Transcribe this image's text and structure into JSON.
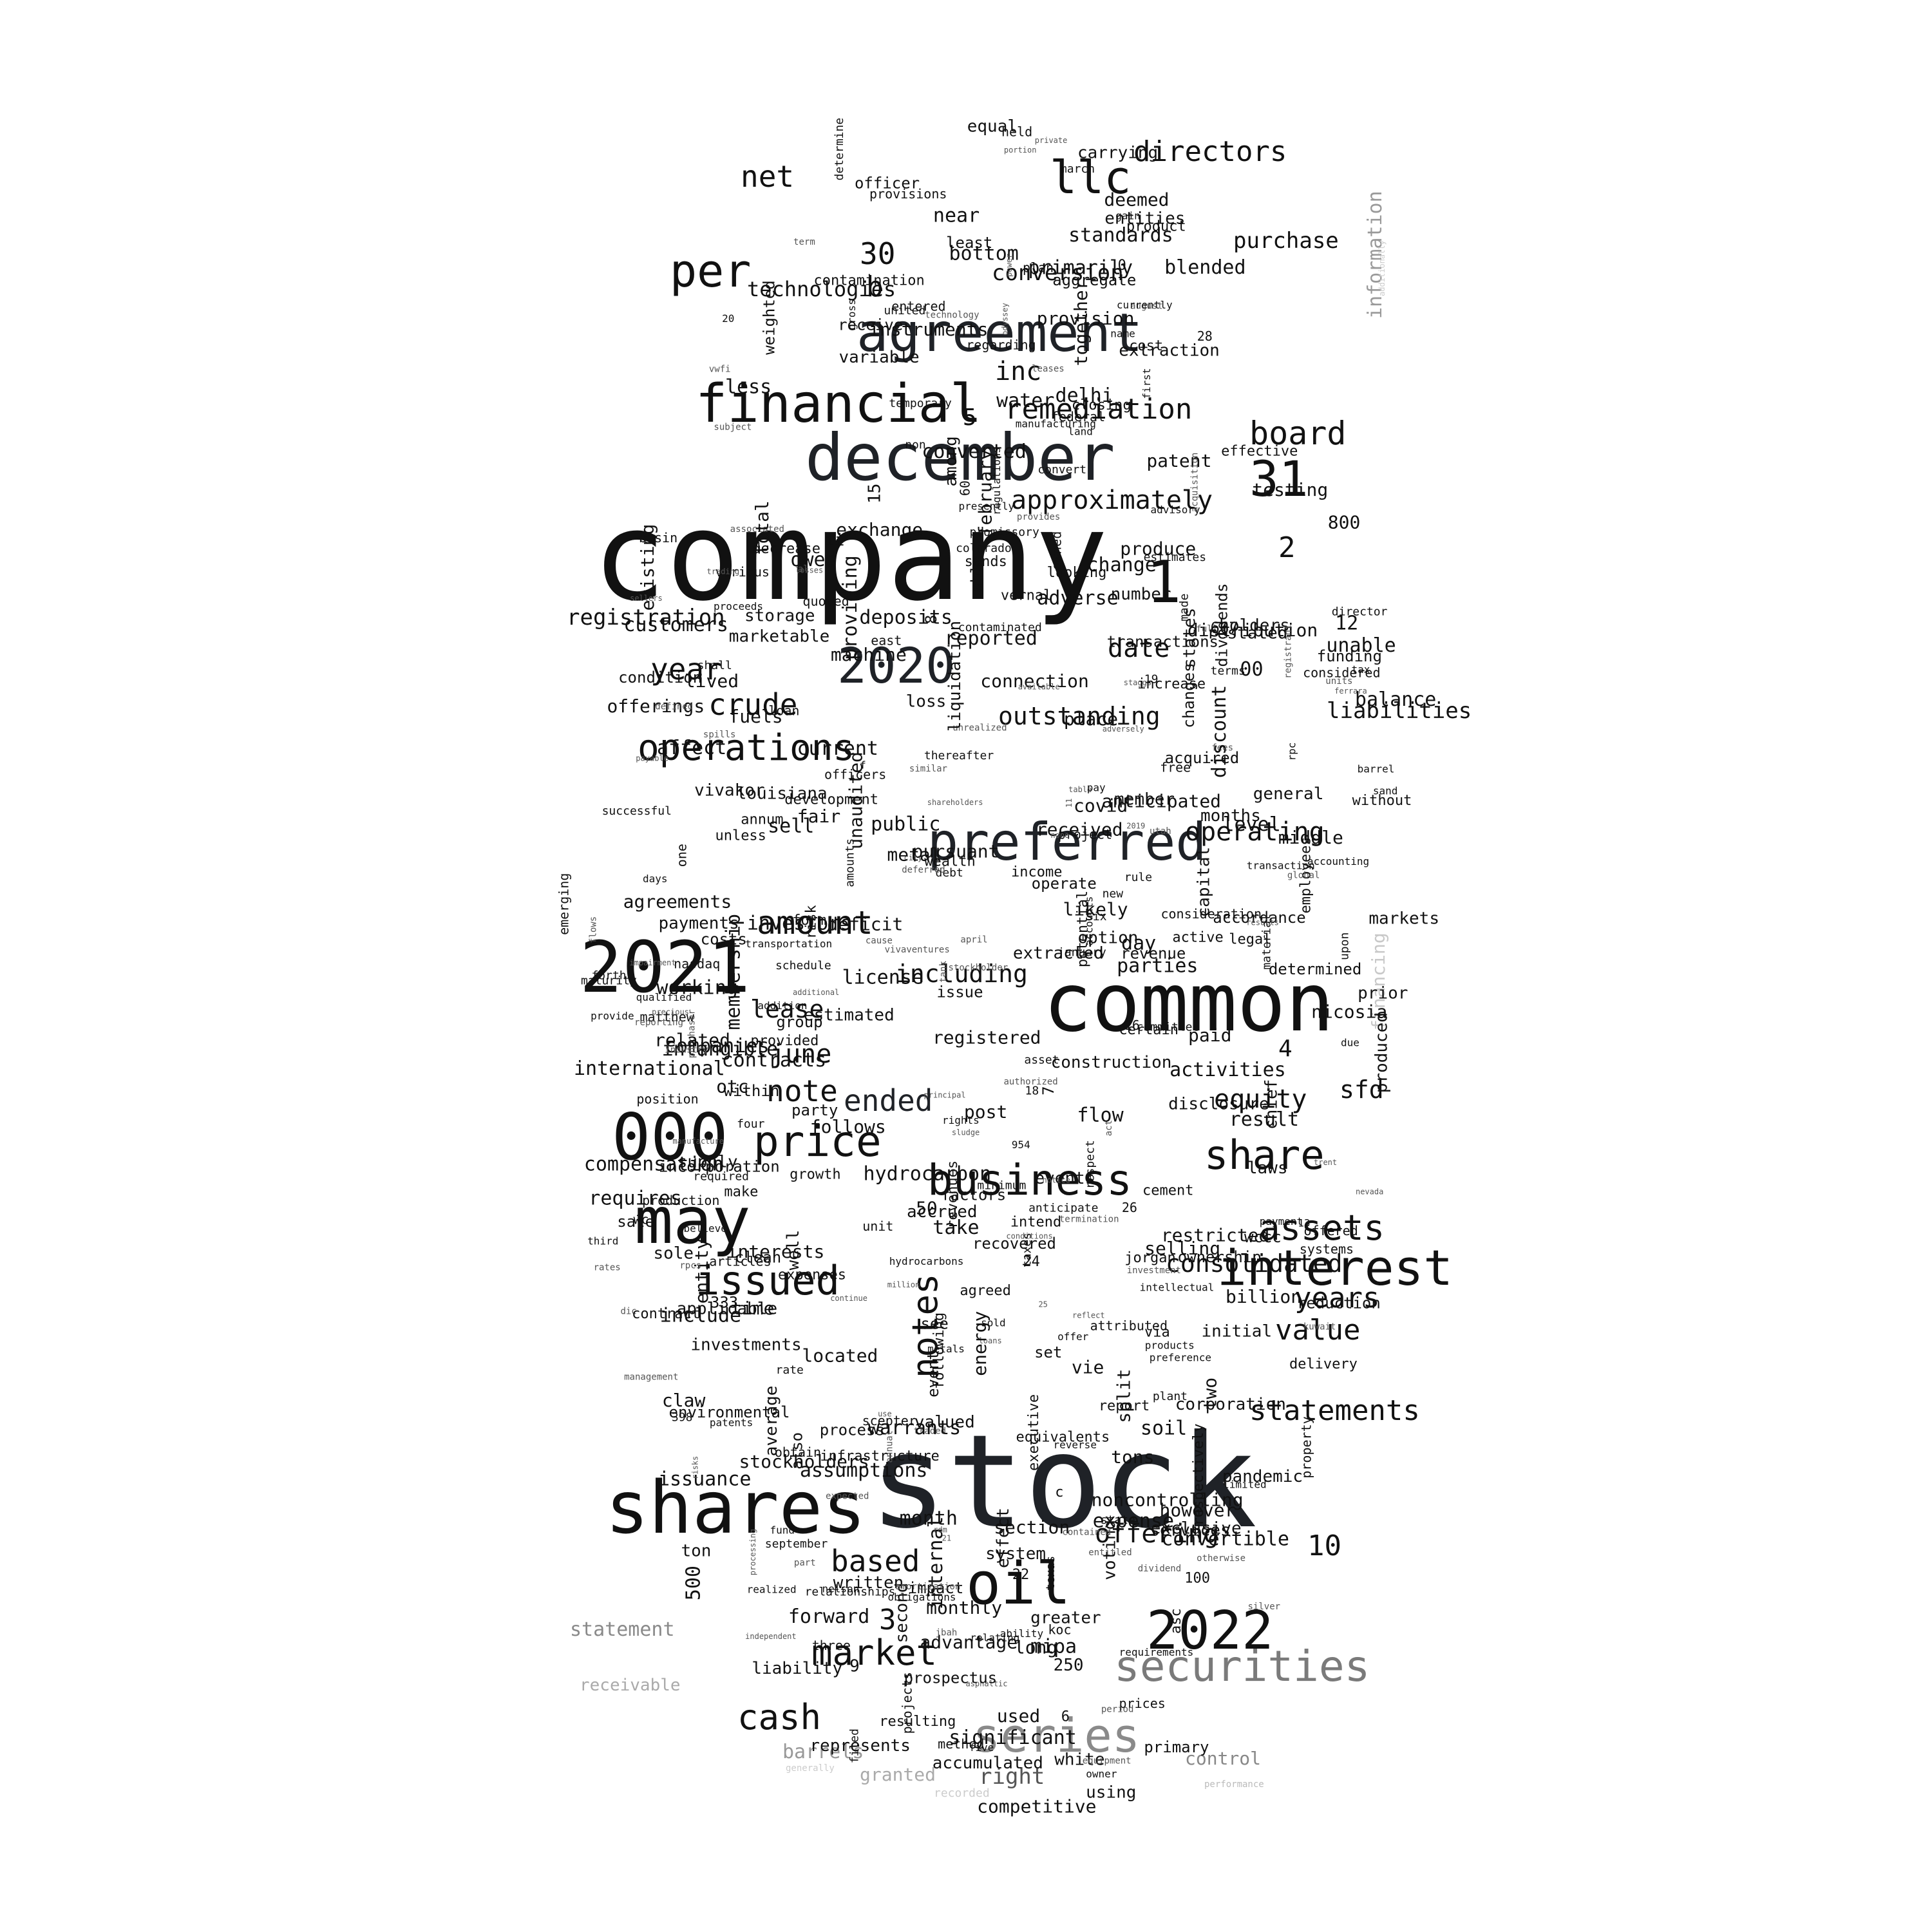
{
  "colors": {
    "background": "#ffffff",
    "black": "#000000",
    "dark": "#1f2227",
    "mid_gray": "#7a7a7a",
    "light_gray": "#b0b0b0",
    "pale_gray": "#d0d0d0"
  },
  "words": [
    {
      "text": "company",
      "color": "#111111"
    },
    {
      "text": "stock",
      "color": "#1f2227"
    },
    {
      "text": "common",
      "color": "#111111"
    },
    {
      "text": "shares",
      "color": "#111111"
    },
    {
      "text": "december",
      "color": "#1f2227"
    },
    {
      "text": "2021",
      "color": "#111111"
    },
    {
      "text": "agreement",
      "color": "#1f2227"
    },
    {
      "text": "financial",
      "color": "#111111"
    },
    {
      "text": "preferred",
      "color": "#1f2227"
    },
    {
      "text": "000",
      "color": "#111111"
    },
    {
      "text": "may",
      "color": "#111111"
    },
    {
      "text": "interest",
      "color": "#111111"
    },
    {
      "text": "2022",
      "color": "#111111"
    },
    {
      "text": "securities",
      "color": "#7a7a7a"
    },
    {
      "text": "series",
      "color": "#8a8a8a"
    },
    {
      "text": "oil",
      "color": "#111111"
    },
    {
      "text": "2020",
      "color": "#1f2227"
    },
    {
      "text": "business",
      "color": "#111111"
    },
    {
      "text": "price",
      "color": "#111111"
    },
    {
      "text": "share",
      "color": "#111111"
    },
    {
      "text": "issued",
      "color": "#111111"
    },
    {
      "text": "operations",
      "color": "#111111"
    },
    {
      "text": "per",
      "color": "#111111"
    },
    {
      "text": "31",
      "color": "#111111"
    },
    {
      "text": "1",
      "color": "#111111"
    },
    {
      "text": "llc",
      "color": "#111111"
    },
    {
      "text": "assets",
      "color": "#111111"
    },
    {
      "text": "notes",
      "color": "#111111"
    },
    {
      "text": "market",
      "color": "#111111"
    },
    {
      "text": "cash",
      "color": "#111111"
    },
    {
      "text": "amount",
      "color": "#111111"
    },
    {
      "text": "board",
      "color": "#111111"
    },
    {
      "text": "crude",
      "color": "#111111"
    },
    {
      "text": "year",
      "color": "#111111"
    },
    {
      "text": "statements",
      "color": "#111111"
    },
    {
      "text": "years",
      "color": "#111111"
    },
    {
      "text": "value",
      "color": "#111111"
    },
    {
      "text": "note",
      "color": "#111111"
    },
    {
      "text": "ended",
      "color": "#1f2227"
    },
    {
      "text": "remediation",
      "color": "#111111"
    },
    {
      "text": "approximately",
      "color": "#111111"
    },
    {
      "text": "directors",
      "color": "#111111"
    },
    {
      "text": "net",
      "color": "#111111"
    },
    {
      "text": "inc",
      "color": "#111111"
    },
    {
      "text": "date",
      "color": "#111111"
    },
    {
      "text": "offering",
      "color": "#111111"
    },
    {
      "text": "based",
      "color": "#111111"
    },
    {
      "text": "equity",
      "color": "#111111"
    },
    {
      "text": "consolidated",
      "color": "#111111"
    },
    {
      "text": "operating",
      "color": "#111111"
    },
    {
      "text": "outstanding",
      "color": "#111111"
    },
    {
      "text": "including",
      "color": "#111111"
    },
    {
      "text": "sfd",
      "color": "#111111"
    },
    {
      "text": "june",
      "color": "#111111"
    },
    {
      "text": "lease",
      "color": "#111111"
    },
    {
      "text": "30",
      "color": "#111111"
    },
    {
      "text": "b",
      "color": "#111111"
    },
    {
      "text": "5",
      "color": "#111111"
    },
    {
      "text": "2",
      "color": "#111111"
    },
    {
      "text": "3",
      "color": "#111111"
    },
    {
      "text": "10",
      "color": "#111111"
    },
    {
      "text": "4",
      "color": "#111111"
    },
    {
      "text": "registration",
      "color": "#111111"
    },
    {
      "text": "liabilities",
      "color": "#111111"
    },
    {
      "text": "technologies",
      "color": "#111111"
    },
    {
      "text": "conversion",
      "color": "#111111"
    },
    {
      "text": "purchase",
      "color": "#111111"
    },
    {
      "text": "financing",
      "color": "#c8c8c8"
    },
    {
      "text": "information",
      "color": "#999999"
    },
    {
      "text": "statement",
      "color": "#8a8a8a"
    },
    {
      "text": "receivable",
      "color": "#aaaaaa"
    },
    {
      "text": "barrels",
      "color": "#999999"
    },
    {
      "text": "granted",
      "color": "#aaaaaa"
    },
    {
      "text": "recorded",
      "color": "#cccccc"
    },
    {
      "text": "additionally",
      "color": "#cccccc"
    },
    {
      "text": "generally",
      "color": "#cccccc"
    },
    {
      "text": "control",
      "color": "#888888"
    },
    {
      "text": "right",
      "color": "#555555"
    },
    {
      "text": "performance",
      "color": "#bbbbbb"
    }
  ],
  "small_words": [
    "transactions",
    "investment",
    "services",
    "effective",
    "stockholders",
    "payments",
    "current",
    "pursuant",
    "shall",
    "markets",
    "monthly",
    "effect",
    "aggregate",
    "estimates",
    "projects",
    "weighted",
    "quoted",
    "legal",
    "reflect",
    "issue",
    "five",
    "trent",
    "anticipated",
    "assumptions",
    "within",
    "25",
    "basin",
    "nelson",
    "city",
    "exclusive",
    "texas",
    "group",
    "revenue",
    "cost",
    "rule",
    "f",
    "companies",
    "section",
    "april",
    "table",
    "initial",
    "investors",
    "decrease",
    "rate",
    "estimated",
    "intellectual",
    "nasdaq",
    "cement",
    "wealth",
    "covid",
    "successful",
    "similar",
    "represents",
    "accordance",
    "infrastructure",
    "primarily",
    "third",
    "ability",
    "liability",
    "written",
    "patent",
    "acquisition",
    "loan",
    "condition",
    "obtain",
    "provision",
    "respect",
    "construction",
    "limited",
    "prices",
    "agreed",
    "products",
    "material",
    "result",
    "convertible",
    "extraction",
    "parties",
    "rates",
    "near",
    "using",
    "15",
    "impact",
    "7",
    "losses",
    "existing",
    "asphaltic",
    "2019",
    "time",
    "transportation",
    "officers",
    "used",
    "filed",
    "unit",
    "revenues",
    "greater",
    "cause",
    "deficit",
    "month",
    "metal",
    "offer",
    "term",
    "distribution",
    "barrel",
    "louisiana",
    "ownership",
    "states",
    "owned",
    "prior",
    "following",
    "united",
    "executive",
    "march",
    "koc",
    "debt",
    "funding",
    "potential",
    "machine",
    "otc",
    "entitled",
    "sole",
    "received",
    "realized",
    "voting",
    "full",
    "fuels",
    "advisory",
    "project",
    "owed",
    "receive",
    "loans",
    "competitive",
    "articles",
    "tons",
    "deposits",
    "preference",
    "primary",
    "advantage",
    "water",
    "stockholder",
    "average",
    "party",
    "matthew",
    "membership",
    "dividend",
    "terms",
    "unaudited",
    "800",
    "equivalents",
    "rpc",
    "holders",
    "number",
    "accounts",
    "level",
    "delivery",
    "split",
    "emerging",
    "provides",
    "part",
    "temporary",
    "sands",
    "manufacturing",
    "january",
    "follows",
    "6",
    "precious",
    "sellers",
    "product",
    "entity",
    "sludge",
    "system",
    "offerings",
    "set",
    "asc",
    "odyssey",
    "among",
    "position",
    "determined",
    "management",
    "issuance",
    "three",
    "50",
    "without",
    "one",
    "requirements",
    "sand",
    "four",
    "interests",
    "reported",
    "units",
    "payment",
    "event",
    "c",
    "director",
    "environmental",
    "11",
    "subject",
    "loss",
    "act",
    "additional",
    "processing",
    "offered",
    "250",
    "able",
    "adverse",
    "events",
    "considered",
    "flow",
    "non",
    "nevada",
    "intend",
    "tank",
    "make",
    "option",
    "sale",
    "prospectus",
    "gain",
    "results",
    "international",
    "promissory",
    "certain",
    "report",
    "bottom",
    "convert",
    "18",
    "laws",
    "reverse",
    "affect",
    "ferrara",
    "expense",
    "intangible",
    "utah",
    "factors",
    "september",
    "shareholders",
    "payable",
    "white",
    "0",
    "also",
    "presently",
    "hydrocarbon",
    "accounting",
    "registered",
    "fees",
    "metals",
    "likely",
    "plan",
    "take",
    "east",
    "deferred",
    "500",
    "mipa",
    "staggs",
    "reporting",
    "nicosia",
    "provide",
    "power",
    "traded",
    "compensation",
    "sell",
    "made",
    "954",
    "various",
    "august",
    "conditions",
    "dividends",
    "february",
    "owner",
    "standards",
    "restricted",
    "unless",
    "process",
    "60",
    "produce",
    "contracts",
    "general",
    "purchaser",
    "testing",
    "adversely",
    "flows",
    "16",
    "principal",
    "unrealized",
    "vivaventures",
    "together",
    "fund",
    "long",
    "less",
    "blended",
    "19",
    "industry",
    "8",
    "increase",
    "production",
    "entered",
    "equipment",
    "day",
    "second",
    "incorporation",
    "converted",
    "billion",
    "equal",
    "selling",
    "post",
    "plant",
    "applicable",
    "jorgan",
    "9",
    "restated",
    "transaction",
    "produced",
    "state",
    "customers",
    "scepter",
    "days",
    "however",
    "working",
    "least",
    "place",
    "via",
    "operate",
    "24",
    "relationships",
    "pandemic",
    "proceeds",
    "variable",
    "colorado",
    "growth",
    "discount",
    "changes",
    "pay",
    "patents",
    "balance",
    "hydrocarbons",
    "technology",
    "obligations",
    "registrant",
    "unable",
    "expected",
    "thereafter",
    "ton",
    "instruments",
    "rpcs",
    "ii",
    "looking",
    "employees",
    "internal",
    "vwfi",
    "333",
    "valued",
    "name",
    "global",
    "six",
    "wccc",
    "currently",
    "amounts",
    "dic",
    "regarding",
    "associated",
    "deemed",
    "accumulated",
    "consideration",
    "supply",
    "held",
    "forth",
    "vivakor",
    "period",
    "activities",
    "12",
    "schedule",
    "sold",
    "00",
    "investments",
    "due",
    "officer",
    "leases",
    "jbah",
    "carrying",
    "taxes",
    "upon",
    "expenses",
    "provisions",
    "closing",
    "relating",
    "located",
    "asset",
    "qualified",
    "impairment",
    "none",
    "contaminated",
    "marketable",
    "resulting",
    "change",
    "22",
    "vernal",
    "clean",
    "form",
    "energy",
    "claw",
    "authorized",
    "lived",
    "noncontrolling",
    "rights",
    "property",
    "fair",
    "forward",
    "maturity",
    "license",
    "respectively",
    "risk",
    "free",
    "committee",
    "active",
    "connection",
    "wc",
    "defined",
    "federal",
    "13",
    "annum",
    "requires",
    "agreements",
    "398",
    "independent",
    "trading",
    "new",
    "costs",
    "kuwait",
    "see",
    "systems",
    "extracted",
    "disclosure",
    "silver",
    "anticipate",
    "manufacture",
    "months",
    "contamination",
    "regulations",
    "20",
    "related",
    "total",
    "capital",
    "required",
    "warrants",
    "liquidation",
    "rdm",
    "providing",
    "chief",
    "otherwise",
    "100",
    "attributed",
    "al",
    "annual",
    "use",
    "development",
    "portion",
    "land",
    "million",
    "accrued",
    "notice",
    "amortization",
    "corporation",
    "continue",
    "recovered",
    "soil",
    "provided",
    "termination",
    "storage",
    "private",
    "method",
    "middle",
    "contract",
    "exchange",
    "gross",
    "contained",
    "acquired",
    "significant",
    "minimum",
    "include",
    "available",
    "entities",
    "paid",
    "tax",
    "believe",
    "income",
    "667",
    "public",
    "addition",
    "determine",
    "21",
    "member",
    "two",
    "risks",
    "first",
    "well",
    "delhi",
    "26",
    "spills",
    "vie",
    "28",
    "reduction"
  ]
}
